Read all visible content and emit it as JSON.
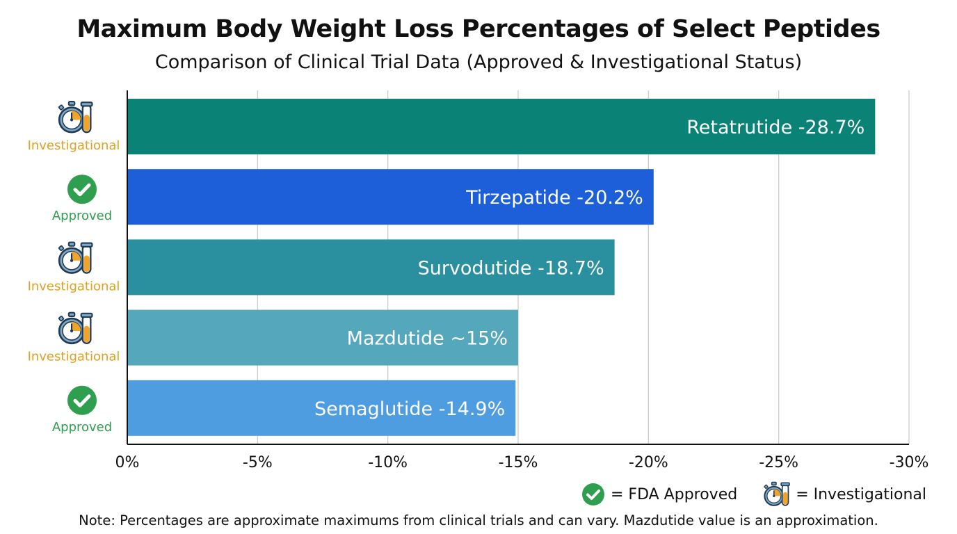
{
  "chart_data": {
    "type": "bar",
    "orientation": "horizontal",
    "title": "Maximum Body Weight Loss Percentages of Select Peptides",
    "subtitle": "Comparison of Clinical Trial Data (Approved & Investigational Status)",
    "categories": [
      "Retatrutide",
      "Tirzepatide",
      "Survodutide",
      "Mazdutide",
      "Semaglutide"
    ],
    "values": [
      -28.7,
      -20.2,
      -18.7,
      -15,
      -14.9
    ],
    "data_labels": [
      "Retatrutide -28.7%",
      "Tirzepatide -20.2%",
      "Survodutide -18.7%",
      "Mazdutide ~15%",
      "Semaglutide -14.9%"
    ],
    "status": [
      "Investigational",
      "Approved",
      "Investigational",
      "Investigational",
      "Approved"
    ],
    "colors": [
      "#0a8275",
      "#1c5fd8",
      "#2a8f9e",
      "#55a7bb",
      "#4e9de0"
    ],
    "xlim": [
      0,
      -30
    ],
    "xticks": [
      0,
      -5,
      -10,
      -15,
      -20,
      -25,
      -30
    ],
    "xtick_labels": [
      "0%",
      "-5%",
      "-10%",
      "-15%",
      "-20%",
      "-25%",
      "-30%"
    ],
    "grid": true,
    "legend": {
      "placement": "bottom-right",
      "approved": "= FDA Approved",
      "investigational": "= Investigational"
    },
    "status_colors": {
      "Approved": "#2e9e4f",
      "Investigational": "#e0a021"
    },
    "note": "Note: Percentages are approximate maximums from clinical trials and can vary. Mazdutide value is an approximation."
  }
}
